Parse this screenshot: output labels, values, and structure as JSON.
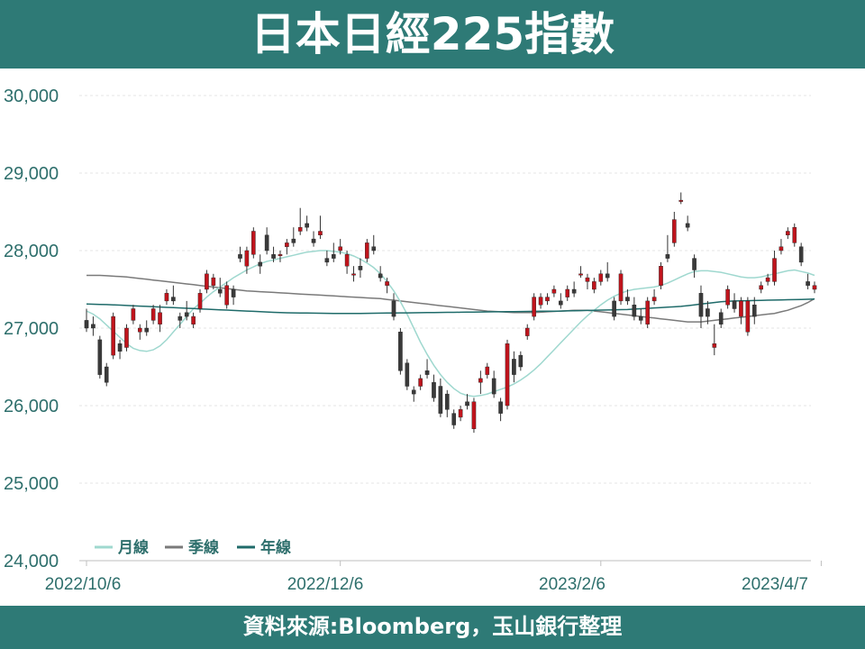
{
  "header": {
    "title": "日本日經225指數"
  },
  "footer": {
    "source": "資料來源:Bloomberg，玉山銀行整理"
  },
  "colors": {
    "header_bg": "#2e7a76",
    "up": "#c0141c",
    "down": "#3a3a3a",
    "month_ma": "#9fd8cf",
    "quarter_ma": "#7a7a7a",
    "year_ma": "#1f6b6a"
  },
  "chart_data": {
    "type": "candlestick",
    "ylim": [
      24000,
      30000
    ],
    "y_ticks": [
      "30,000",
      "29,000",
      "28,000",
      "27,000",
      "26,000",
      "25,000",
      "24,000"
    ],
    "x_ticks": [
      "2022/10/6",
      "2022/12/6",
      "2023/2/6",
      "2023/4/7"
    ],
    "legend": [
      "月線",
      "季線",
      "年線"
    ],
    "grid": true,
    "candles": [
      [
        27100,
        27250,
        26950,
        27000
      ],
      [
        27050,
        27150,
        26900,
        27000
      ],
      [
        26850,
        26900,
        26350,
        26400
      ],
      [
        26500,
        26550,
        26250,
        26300
      ],
      [
        26650,
        27200,
        26600,
        27150
      ],
      [
        26800,
        26850,
        26600,
        26700
      ],
      [
        26750,
        27050,
        26700,
        27000
      ],
      [
        27100,
        27300,
        27050,
        27250
      ],
      [
        26950,
        27050,
        26850,
        27000
      ],
      [
        27000,
        27100,
        26900,
        26950
      ],
      [
        27100,
        27300,
        27050,
        27250
      ],
      [
        27050,
        27300,
        26950,
        27200
      ],
      [
        27350,
        27500,
        27300,
        27450
      ],
      [
        27400,
        27550,
        27300,
        27350
      ],
      [
        27150,
        27200,
        27000,
        27100
      ],
      [
        27200,
        27350,
        27100,
        27150
      ],
      [
        27050,
        27200,
        27000,
        27150
      ],
      [
        27250,
        27500,
        27200,
        27450
      ],
      [
        27500,
        27750,
        27450,
        27700
      ],
      [
        27550,
        27700,
        27500,
        27650
      ],
      [
        27500,
        27650,
        27400,
        27450
      ],
      [
        27300,
        27600,
        27250,
        27550
      ],
      [
        27500,
        27550,
        27300,
        27400
      ],
      [
        27950,
        28050,
        27850,
        27900
      ],
      [
        27800,
        28050,
        27700,
        28000
      ],
      [
        27950,
        28300,
        27900,
        28250
      ],
      [
        27850,
        27950,
        27700,
        27800
      ],
      [
        28200,
        28300,
        27950,
        28000
      ],
      [
        27950,
        28050,
        27850,
        27900
      ],
      [
        27950,
        28000,
        27850,
        27950
      ],
      [
        28050,
        28150,
        27950,
        28100
      ],
      [
        28150,
        28300,
        28050,
        28100
      ],
      [
        28250,
        28550,
        28200,
        28300
      ],
      [
        28350,
        28450,
        28250,
        28300
      ],
      [
        28150,
        28250,
        28050,
        28100
      ],
      [
        28200,
        28450,
        28150,
        28250
      ],
      [
        27900,
        28000,
        27800,
        27850
      ],
      [
        27950,
        28100,
        27850,
        27900
      ],
      [
        28000,
        28150,
        27950,
        28050
      ],
      [
        27800,
        28000,
        27700,
        27950
      ],
      [
        27700,
        27800,
        27600,
        27700
      ],
      [
        27800,
        27900,
        27650,
        27750
      ],
      [
        27900,
        28150,
        27850,
        28100
      ],
      [
        28050,
        28200,
        27950,
        28000
      ],
      [
        27700,
        27800,
        27600,
        27650
      ],
      [
        27550,
        27650,
        27450,
        27600
      ],
      [
        27350,
        27450,
        27100,
        27150
      ],
      [
        26950,
        27000,
        26400,
        26450
      ],
      [
        26550,
        26600,
        26200,
        26250
      ],
      [
        26200,
        26250,
        26050,
        26150
      ],
      [
        26250,
        26400,
        26200,
        26350
      ],
      [
        26450,
        26600,
        26350,
        26400
      ],
      [
        26300,
        26400,
        26050,
        26100
      ],
      [
        26250,
        26350,
        25850,
        25900
      ],
      [
        26150,
        26200,
        25850,
        25950
      ],
      [
        25900,
        25950,
        25700,
        25750
      ],
      [
        25850,
        26000,
        25800,
        25950
      ],
      [
        26050,
        26150,
        25950,
        26000
      ],
      [
        25700,
        26100,
        25650,
        26050
      ],
      [
        26300,
        26450,
        26150,
        26350
      ],
      [
        26400,
        26550,
        26350,
        26500
      ],
      [
        26350,
        26450,
        26100,
        26150
      ],
      [
        26050,
        26100,
        25800,
        25900
      ],
      [
        26000,
        26850,
        25950,
        26800
      ],
      [
        26600,
        26700,
        26300,
        26400
      ],
      [
        26650,
        26700,
        26450,
        26500
      ],
      [
        26900,
        27050,
        26850,
        27000
      ],
      [
        27150,
        27450,
        27100,
        27400
      ],
      [
        27300,
        27450,
        27250,
        27400
      ],
      [
        27350,
        27450,
        27300,
        27400
      ],
      [
        27450,
        27550,
        27400,
        27500
      ],
      [
        27350,
        27450,
        27250,
        27300
      ],
      [
        27400,
        27550,
        27350,
        27500
      ],
      [
        27500,
        27600,
        27400,
        27450
      ],
      [
        27700,
        27800,
        27650,
        27700
      ],
      [
        27600,
        27700,
        27500,
        27650
      ],
      [
        27500,
        27650,
        27450,
        27600
      ],
      [
        27600,
        27750,
        27550,
        27700
      ],
      [
        27700,
        27850,
        27600,
        27650
      ],
      [
        27350,
        27400,
        27100,
        27150
      ],
      [
        27350,
        27750,
        27300,
        27700
      ],
      [
        27400,
        27500,
        27300,
        27350
      ],
      [
        27300,
        27400,
        27100,
        27150
      ],
      [
        27150,
        27250,
        27050,
        27100
      ],
      [
        27050,
        27400,
        27000,
        27350
      ],
      [
        27350,
        27500,
        27300,
        27400
      ],
      [
        27550,
        27850,
        27500,
        27800
      ],
      [
        27950,
        28200,
        27850,
        27900
      ],
      [
        28100,
        28500,
        28050,
        28400
      ],
      [
        28650,
        28750,
        28600,
        28650
      ],
      [
        28350,
        28450,
        28250,
        28300
      ],
      [
        27900,
        27950,
        27650,
        27750
      ],
      [
        27450,
        27550,
        27000,
        27150
      ],
      [
        27250,
        27350,
        27050,
        27150
      ],
      [
        26750,
        27050,
        26650,
        26800
      ],
      [
        27200,
        27250,
        27000,
        27050
      ],
      [
        27300,
        27550,
        27250,
        27500
      ],
      [
        27350,
        27450,
        27200,
        27250
      ],
      [
        27150,
        27400,
        27050,
        27350
      ],
      [
        26950,
        27400,
        26900,
        27350
      ],
      [
        27300,
        27400,
        27050,
        27150
      ],
      [
        27500,
        27600,
        27450,
        27550
      ],
      [
        27600,
        27700,
        27550,
        27650
      ],
      [
        27600,
        28000,
        27550,
        27900
      ],
      [
        28000,
        28150,
        27950,
        28050
      ],
      [
        28200,
        28300,
        28150,
        28250
      ],
      [
        28100,
        28350,
        28050,
        28300
      ],
      [
        28050,
        28100,
        27800,
        27850
      ],
      [
        27600,
        27700,
        27500,
        27550
      ],
      [
        27500,
        27600,
        27450,
        27550
      ]
    ],
    "ma_month": [
      27220,
      27180,
      27120,
      27040,
      26960,
      26880,
      26800,
      26740,
      26710,
      26700,
      26720,
      26770,
      26850,
      26950,
      27050,
      27150,
      27250,
      27320,
      27400,
      27470,
      27530,
      27590,
      27650,
      27700,
      27750,
      27790,
      27830,
      27860,
      27880,
      27900,
      27920,
      27940,
      27960,
      27980,
      27990,
      28000,
      28000,
      27990,
      27980,
      27960,
      27930,
      27890,
      27840,
      27780,
      27700,
      27600,
      27480,
      27340,
      27180,
      27000,
      26820,
      26660,
      26520,
      26400,
      26300,
      26220,
      26160,
      26130,
      26120,
      26130,
      26150,
      26180,
      26210,
      26240,
      26280,
      26330,
      26390,
      26460,
      26540,
      26630,
      26720,
      26810,
      26900,
      26990,
      27080,
      27160,
      27230,
      27300,
      27360,
      27410,
      27450,
      27480,
      27500,
      27510,
      27520,
      27530,
      27550,
      27580,
      27620,
      27660,
      27700,
      27730,
      27740,
      27740,
      27730,
      27720,
      27700,
      27680,
      27660,
      27650,
      27650,
      27660,
      27680,
      27700,
      27720,
      27740,
      27750,
      27730,
      27710,
      27680
    ],
    "ma_quarter": [
      27680,
      27680,
      27680,
      27675,
      27670,
      27665,
      27660,
      27650,
      27640,
      27630,
      27620,
      27610,
      27600,
      27590,
      27580,
      27570,
      27560,
      27550,
      27540,
      27530,
      27520,
      27510,
      27500,
      27490,
      27480,
      27475,
      27470,
      27465,
      27460,
      27455,
      27450,
      27445,
      27440,
      27435,
      27430,
      27425,
      27420,
      27415,
      27410,
      27405,
      27400,
      27395,
      27390,
      27385,
      27380,
      27370,
      27360,
      27350,
      27340,
      27330,
      27320,
      27310,
      27300,
      27290,
      27280,
      27270,
      27260,
      27250,
      27240,
      27230,
      27220,
      27215,
      27210,
      27205,
      27200,
      27200,
      27200,
      27200,
      27205,
      27210,
      27215,
      27220,
      27225,
      27230,
      27230,
      27230,
      27220,
      27210,
      27200,
      27190,
      27180,
      27170,
      27160,
      27150,
      27140,
      27130,
      27120,
      27110,
      27100,
      27090,
      27080,
      27080,
      27080,
      27090,
      27100,
      27110,
      27120,
      27130,
      27140,
      27150,
      27160,
      27170,
      27180,
      27190,
      27210,
      27230,
      27260,
      27290,
      27330,
      27380
    ],
    "ma_year": [
      27310,
      27308,
      27306,
      27304,
      27300,
      27296,
      27292,
      27288,
      27284,
      27280,
      27276,
      27272,
      27268,
      27264,
      27260,
      27256,
      27252,
      27248,
      27244,
      27240,
      27236,
      27232,
      27228,
      27224,
      27220,
      27216,
      27212,
      27208,
      27204,
      27200,
      27198,
      27196,
      27195,
      27194,
      27193,
      27192,
      27191,
      27190,
      27190,
      27190,
      27190,
      27190,
      27191,
      27192,
      27193,
      27194,
      27195,
      27196,
      27197,
      27198,
      27199,
      27200,
      27201,
      27202,
      27203,
      27204,
      27205,
      27206,
      27207,
      27208,
      27209,
      27210,
      27211,
      27212,
      27213,
      27214,
      27215,
      27216,
      27217,
      27218,
      27219,
      27220,
      27222,
      27224,
      27226,
      27228,
      27230,
      27232,
      27234,
      27236,
      27238,
      27240,
      27245,
      27250,
      27255,
      27260,
      27265,
      27270,
      27275,
      27280,
      27290,
      27300,
      27310,
      27320,
      27330,
      27340,
      27345,
      27350,
      27352,
      27354,
      27356,
      27358,
      27360,
      27362,
      27364,
      27366,
      27368,
      27370,
      27372,
      27374
    ]
  }
}
